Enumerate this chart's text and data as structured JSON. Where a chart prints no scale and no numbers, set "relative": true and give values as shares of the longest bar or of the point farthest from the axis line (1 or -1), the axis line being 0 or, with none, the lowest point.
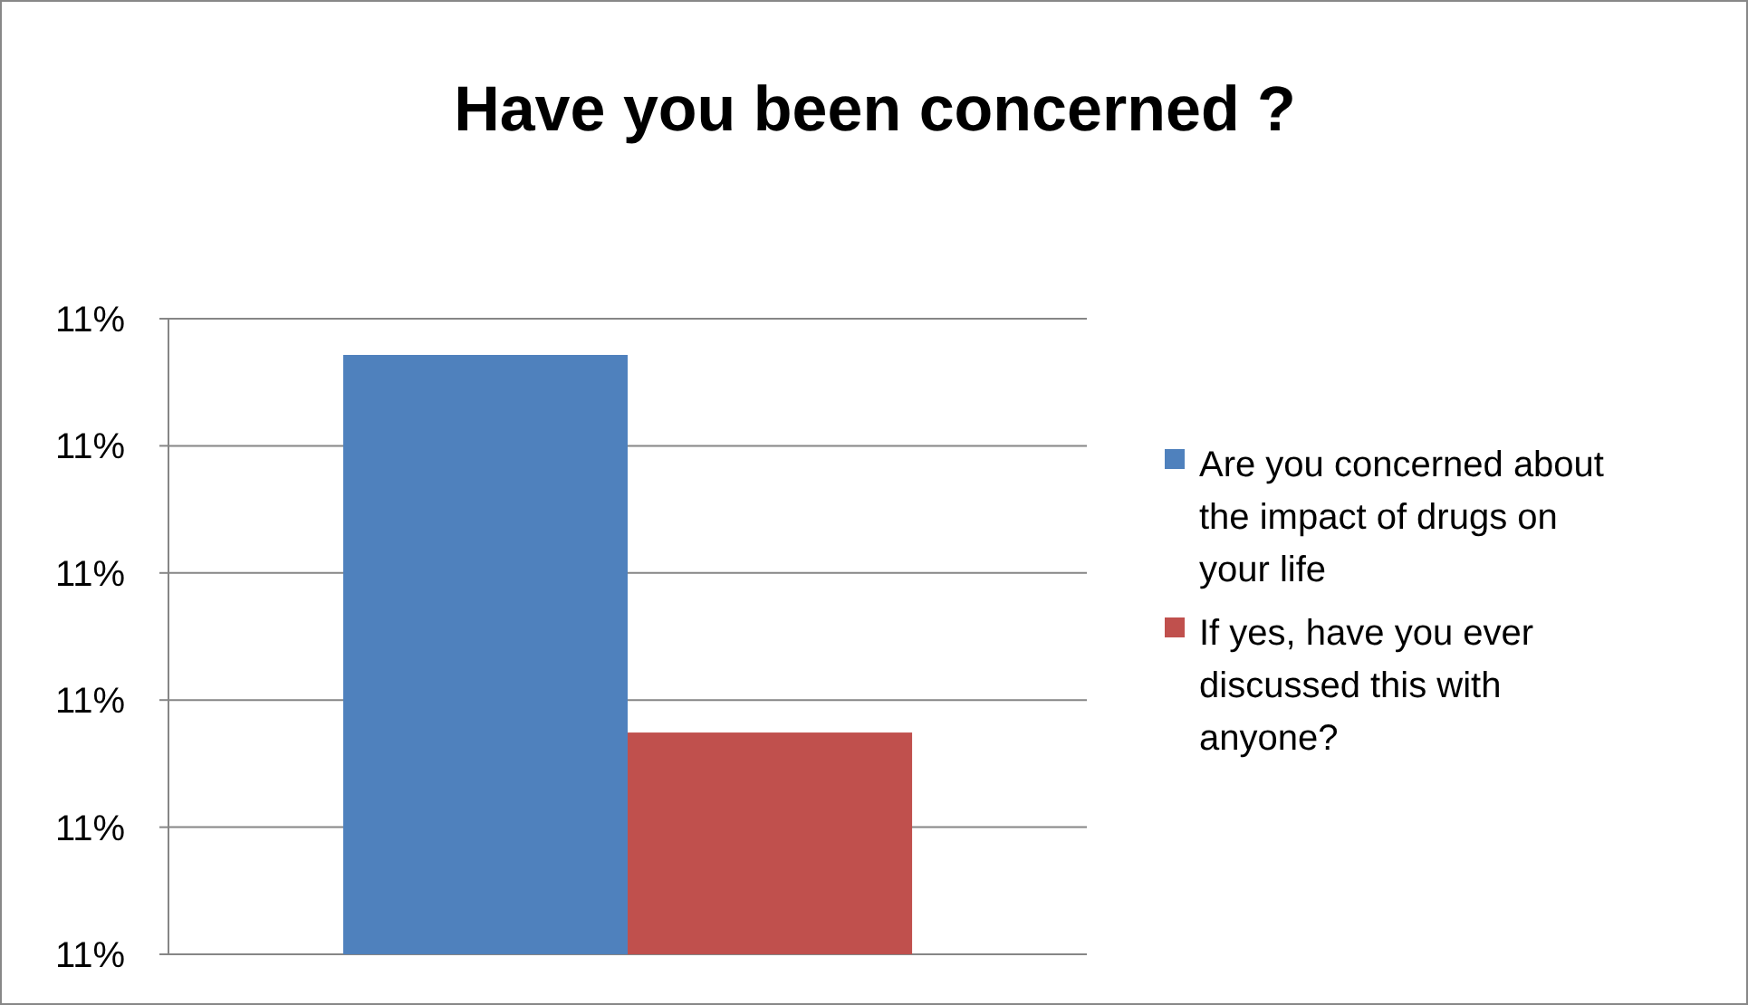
{
  "chart_data": {
    "type": "bar",
    "title": "Have you been concerned ?",
    "categories": [
      null
    ],
    "series": [
      {
        "name": "Are you concerned about the impact of drugs on your life",
        "color": "#4f81bd",
        "values": [
          1
        ]
      },
      {
        "name": "If yes, have you ever discussed this with anyone?",
        "color": "#c0504d",
        "values": [
          0.37
        ]
      }
    ],
    "relative": true,
    "annotations": [
      "11%",
      "11%",
      "11%",
      "11%",
      "11%",
      "11%"
    ],
    "grid": "y",
    "legend": "right"
  }
}
